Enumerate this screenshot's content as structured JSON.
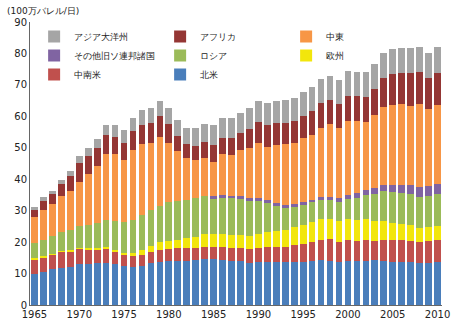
{
  "chart_data": {
    "type": "bar",
    "stacked": true,
    "y_label": "(100万バレル/日)",
    "x": [
      1965,
      1966,
      1967,
      1968,
      1969,
      1970,
      1971,
      1972,
      1973,
      1974,
      1975,
      1976,
      1977,
      1978,
      1979,
      1980,
      1981,
      1982,
      1983,
      1984,
      1985,
      1986,
      1987,
      1988,
      1989,
      1990,
      1991,
      1992,
      1993,
      1994,
      1995,
      1996,
      1997,
      1998,
      1999,
      2000,
      2001,
      2002,
      2003,
      2004,
      2005,
      2006,
      2007,
      2008,
      2009,
      2010
    ],
    "xlim": [
      1964.5,
      2010.5
    ],
    "xticks": [
      1965,
      1970,
      1975,
      1980,
      1985,
      1990,
      1995,
      2000,
      2005,
      2010
    ],
    "ylim": [
      0,
      90
    ],
    "yticks": [
      0,
      10,
      20,
      30,
      40,
      50,
      60,
      70,
      80,
      90
    ],
    "grid": false,
    "legend": "top left",
    "series": [
      {
        "name": "北米",
        "color": "#4a7ebb",
        "values": [
          10.0,
          10.6,
          11.3,
          11.9,
          12.2,
          12.9,
          12.9,
          13.2,
          13.3,
          12.9,
          12.3,
          12.0,
          12.4,
          13.2,
          13.6,
          13.9,
          14.0,
          14.1,
          14.2,
          14.6,
          14.6,
          14.3,
          14.0,
          14.0,
          13.5,
          13.6,
          13.8,
          13.8,
          13.6,
          13.7,
          13.7,
          13.9,
          14.2,
          14.1,
          13.7,
          13.9,
          13.9,
          14.1,
          14.2,
          14.1,
          13.7,
          13.7,
          13.7,
          13.2,
          13.4,
          13.8
        ]
      },
      {
        "name": "中南米",
        "color": "#c0504d",
        "values": [
          4.4,
          4.5,
          4.6,
          4.8,
          4.8,
          4.8,
          4.7,
          4.4,
          4.6,
          4.1,
          3.6,
          3.6,
          3.6,
          3.7,
          3.9,
          4.0,
          4.0,
          3.9,
          3.8,
          3.9,
          3.9,
          4.0,
          4.0,
          4.1,
          4.3,
          4.5,
          4.7,
          4.8,
          5.0,
          5.3,
          5.7,
          6.1,
          6.5,
          6.8,
          6.4,
          6.7,
          6.6,
          6.6,
          6.3,
          6.7,
          6.9,
          6.9,
          6.6,
          6.7,
          6.8,
          7.0
        ]
      },
      {
        "name": "欧州",
        "color": "#f2e60c",
        "values": [
          0.4,
          0.4,
          0.4,
          0.4,
          0.4,
          0.4,
          0.4,
          0.4,
          0.4,
          0.4,
          0.6,
          0.9,
          1.5,
          1.8,
          2.4,
          2.6,
          2.8,
          3.2,
          3.6,
          4.0,
          4.2,
          4.3,
          4.4,
          4.3,
          4.2,
          4.5,
          4.6,
          4.9,
          5.2,
          5.8,
          6.1,
          6.5,
          6.6,
          6.5,
          6.6,
          6.6,
          6.4,
          6.5,
          6.2,
          6.0,
          5.6,
          5.2,
          5.0,
          4.7,
          4.5,
          4.2
        ]
      },
      {
        "name": "ロシア",
        "color": "#9bbb59",
        "values": [
          4.9,
          5.3,
          5.8,
          6.2,
          6.6,
          7.1,
          7.6,
          8.0,
          8.6,
          9.2,
          9.9,
          10.5,
          11.1,
          11.5,
          11.7,
          12.1,
          12.3,
          12.3,
          12.4,
          12.3,
          11.0,
          11.4,
          11.5,
          11.4,
          11.1,
          10.4,
          9.3,
          8.0,
          7.2,
          6.4,
          6.3,
          6.1,
          6.2,
          6.1,
          6.2,
          6.5,
          7.1,
          7.7,
          8.5,
          9.3,
          9.6,
          9.8,
          10.0,
          9.9,
          10.0,
          10.3
        ]
      },
      {
        "name": "その他旧ソ連邦諸国",
        "color": "#8064a2",
        "values": [
          null,
          null,
          null,
          null,
          null,
          null,
          null,
          null,
          null,
          null,
          null,
          null,
          null,
          null,
          null,
          null,
          null,
          null,
          null,
          null,
          0.9,
          0.9,
          0.9,
          0.9,
          0.9,
          0.9,
          0.9,
          0.9,
          0.8,
          0.8,
          0.8,
          0.8,
          0.9,
          1.0,
          1.2,
          1.4,
          1.5,
          1.7,
          1.9,
          2.1,
          2.4,
          2.7,
          2.9,
          3.0,
          3.1,
          3.1
        ]
      },
      {
        "name": "中東",
        "color": "#f79646",
        "values": [
          8.4,
          9.4,
          10.0,
          11.3,
          12.4,
          14.0,
          16.2,
          18.2,
          21.2,
          21.5,
          19.8,
          22.3,
          22.5,
          21.4,
          21.8,
          18.9,
          15.9,
          13.1,
          12.0,
          11.8,
          10.9,
          13.0,
          13.0,
          14.5,
          16.0,
          17.6,
          17.0,
          18.5,
          19.3,
          19.5,
          20.4,
          20.7,
          21.9,
          23.1,
          22.2,
          23.5,
          23.0,
          21.7,
          23.3,
          24.8,
          25.4,
          25.5,
          25.2,
          26.3,
          24.5,
          25.2
        ]
      },
      {
        "name": "アフリカ",
        "color": "#943634",
        "values": [
          2.2,
          2.9,
          3.1,
          3.8,
          4.6,
          6.1,
          5.7,
          5.8,
          5.9,
          5.4,
          5.3,
          5.9,
          6.3,
          6.2,
          6.7,
          6.2,
          4.8,
          4.7,
          4.7,
          5.1,
          5.4,
          5.3,
          5.4,
          5.4,
          5.9,
          6.7,
          7.0,
          7.0,
          6.9,
          6.9,
          7.2,
          7.5,
          7.8,
          7.6,
          7.5,
          7.8,
          7.9,
          8.0,
          8.4,
          9.3,
          9.9,
          10.0,
          10.3,
          10.3,
          9.9,
          10.1
        ]
      },
      {
        "name": "アジア大洋州",
        "color": "#a5a5a5",
        "values": [
          1.0,
          1.1,
          1.1,
          1.3,
          1.5,
          2.0,
          2.4,
          2.9,
          3.3,
          3.6,
          4.0,
          4.3,
          4.5,
          4.8,
          4.9,
          5.0,
          4.9,
          5.1,
          5.5,
          6.0,
          6.4,
          6.4,
          6.4,
          6.6,
          6.6,
          6.8,
          6.9,
          6.9,
          7.1,
          7.3,
          7.5,
          7.7,
          7.7,
          7.6,
          7.6,
          7.9,
          7.8,
          7.8,
          7.8,
          7.9,
          7.9,
          7.9,
          7.9,
          8.0,
          8.0,
          8.4
        ]
      }
    ]
  }
}
